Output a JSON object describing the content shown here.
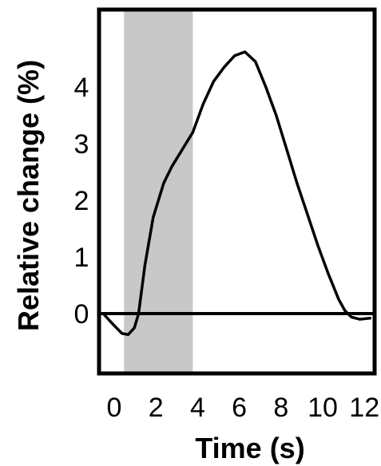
{
  "chart_data": {
    "type": "line",
    "title": "",
    "xlabel": "Time (s)",
    "ylabel": "Relative change (%)",
    "xlim": [
      -0.3,
      12.9
    ],
    "ylim": [
      -1.05,
      5.5
    ],
    "xticks": [
      0,
      2,
      4,
      6,
      8,
      10,
      12
    ],
    "yticks": [
      0,
      1,
      2,
      3,
      4
    ],
    "grid": false,
    "legend": "none",
    "shaded_interval": [
      0.7,
      4.0
    ],
    "reference_line_y": 0,
    "series": [
      {
        "values_x": [
          -0.3,
          0.2,
          0.6,
          0.9,
          1.2,
          1.4,
          1.7,
          2.1,
          2.6,
          3.0,
          3.5,
          4.0,
          4.5,
          5.0,
          5.5,
          6.0,
          6.5,
          7.0,
          7.5,
          8.0,
          8.5,
          9.0,
          9.5,
          10.0,
          10.5,
          11.0,
          11.3,
          11.6,
          12.0,
          12.5
        ],
        "values_y": [
          0.0,
          -0.2,
          -0.35,
          -0.37,
          -0.25,
          0.0,
          0.85,
          1.7,
          2.3,
          2.6,
          2.9,
          3.2,
          3.7,
          4.1,
          4.35,
          4.55,
          4.62,
          4.45,
          4.0,
          3.5,
          2.9,
          2.3,
          1.75,
          1.2,
          0.7,
          0.25,
          0.05,
          -0.06,
          -0.1,
          -0.08
        ]
      }
    ],
    "colors": {
      "line": "#000000",
      "shade": "#c8c8c8",
      "frame": "#000000"
    }
  }
}
